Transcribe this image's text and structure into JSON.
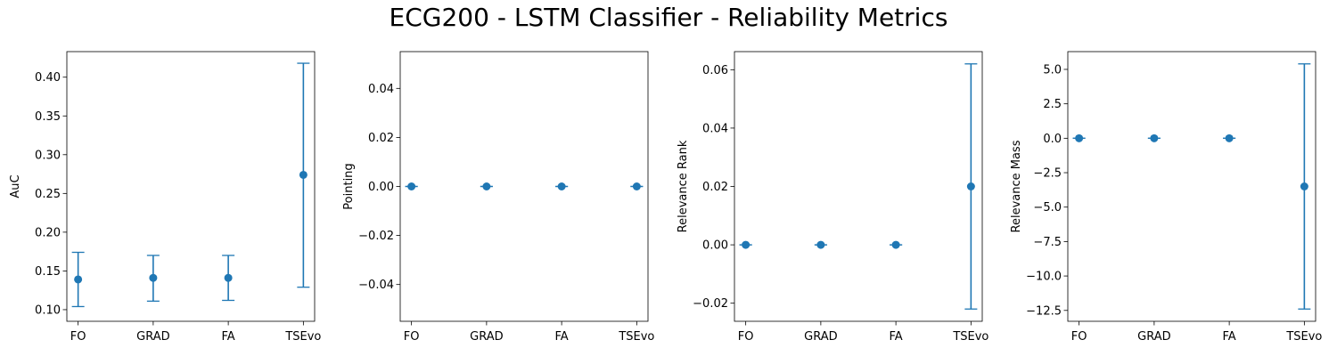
{
  "figure": {
    "title": "ECG200 - LSTM Classifier - Reliability Metrics"
  },
  "colors": {
    "series": "#1f77b4",
    "axes": "#000000"
  },
  "chart_data": [
    {
      "type": "scatter",
      "error_bars": true,
      "categories": [
        "FO",
        "GRAD",
        "FA",
        "TSEvo"
      ],
      "values": [
        0.139,
        0.141,
        0.141,
        0.274
      ],
      "err_lower": [
        0.104,
        0.111,
        0.112,
        0.129
      ],
      "err_upper": [
        0.174,
        0.17,
        0.17,
        0.418
      ],
      "ylabel": "AuC",
      "ylim": [
        0.085,
        0.433
      ],
      "yticks": [
        0.1,
        0.15,
        0.2,
        0.25,
        0.3,
        0.35,
        0.4
      ],
      "ytick_labels": [
        "0.10",
        "0.15",
        "0.20",
        "0.25",
        "0.30",
        "0.35",
        "0.40"
      ],
      "grid": false
    },
    {
      "type": "scatter",
      "error_bars": true,
      "categories": [
        "FO",
        "GRAD",
        "FA",
        "TSEvo"
      ],
      "values": [
        0.0,
        0.0,
        0.0,
        0.0
      ],
      "err_lower": [
        0.0,
        0.0,
        0.0,
        0.0
      ],
      "err_upper": [
        0.0,
        0.0,
        0.0,
        0.0
      ],
      "ylabel": "Pointing",
      "ylim": [
        -0.055,
        0.055
      ],
      "yticks": [
        -0.04,
        -0.02,
        0.0,
        0.02,
        0.04
      ],
      "ytick_labels": [
        "−0.04",
        "−0.02",
        "0.00",
        "0.02",
        "0.04"
      ],
      "grid": false
    },
    {
      "type": "scatter",
      "error_bars": true,
      "categories": [
        "FO",
        "GRAD",
        "FA",
        "TSEvo"
      ],
      "values": [
        0.0,
        0.0,
        0.0,
        0.02
      ],
      "err_lower": [
        0.0,
        0.0,
        0.0,
        -0.022
      ],
      "err_upper": [
        0.0,
        0.0,
        0.0,
        0.062
      ],
      "ylabel": "Relevance Rank",
      "ylim": [
        -0.0262,
        0.0662
      ],
      "yticks": [
        -0.02,
        0.0,
        0.02,
        0.04,
        0.06
      ],
      "ytick_labels": [
        "−0.02",
        "0.00",
        "0.02",
        "0.04",
        "0.06"
      ],
      "grid": false
    },
    {
      "type": "scatter",
      "error_bars": true,
      "categories": [
        "FO",
        "GRAD",
        "FA",
        "TSEvo"
      ],
      "values": [
        0.0,
        0.0,
        0.0,
        -3.5
      ],
      "err_lower": [
        0.0,
        0.0,
        0.0,
        -12.4
      ],
      "err_upper": [
        0.0,
        0.0,
        0.0,
        5.4
      ],
      "ylabel": "Relevance Mass",
      "ylim": [
        -13.29,
        6.29
      ],
      "yticks": [
        -12.5,
        -10.0,
        -7.5,
        -5.0,
        -2.5,
        0.0,
        2.5,
        5.0
      ],
      "ytick_labels": [
        "−12.5",
        "−10.0",
        "−7.5",
        "−5.0",
        "−2.5",
        "0.0",
        "2.5",
        "5.0"
      ],
      "grid": false
    }
  ]
}
